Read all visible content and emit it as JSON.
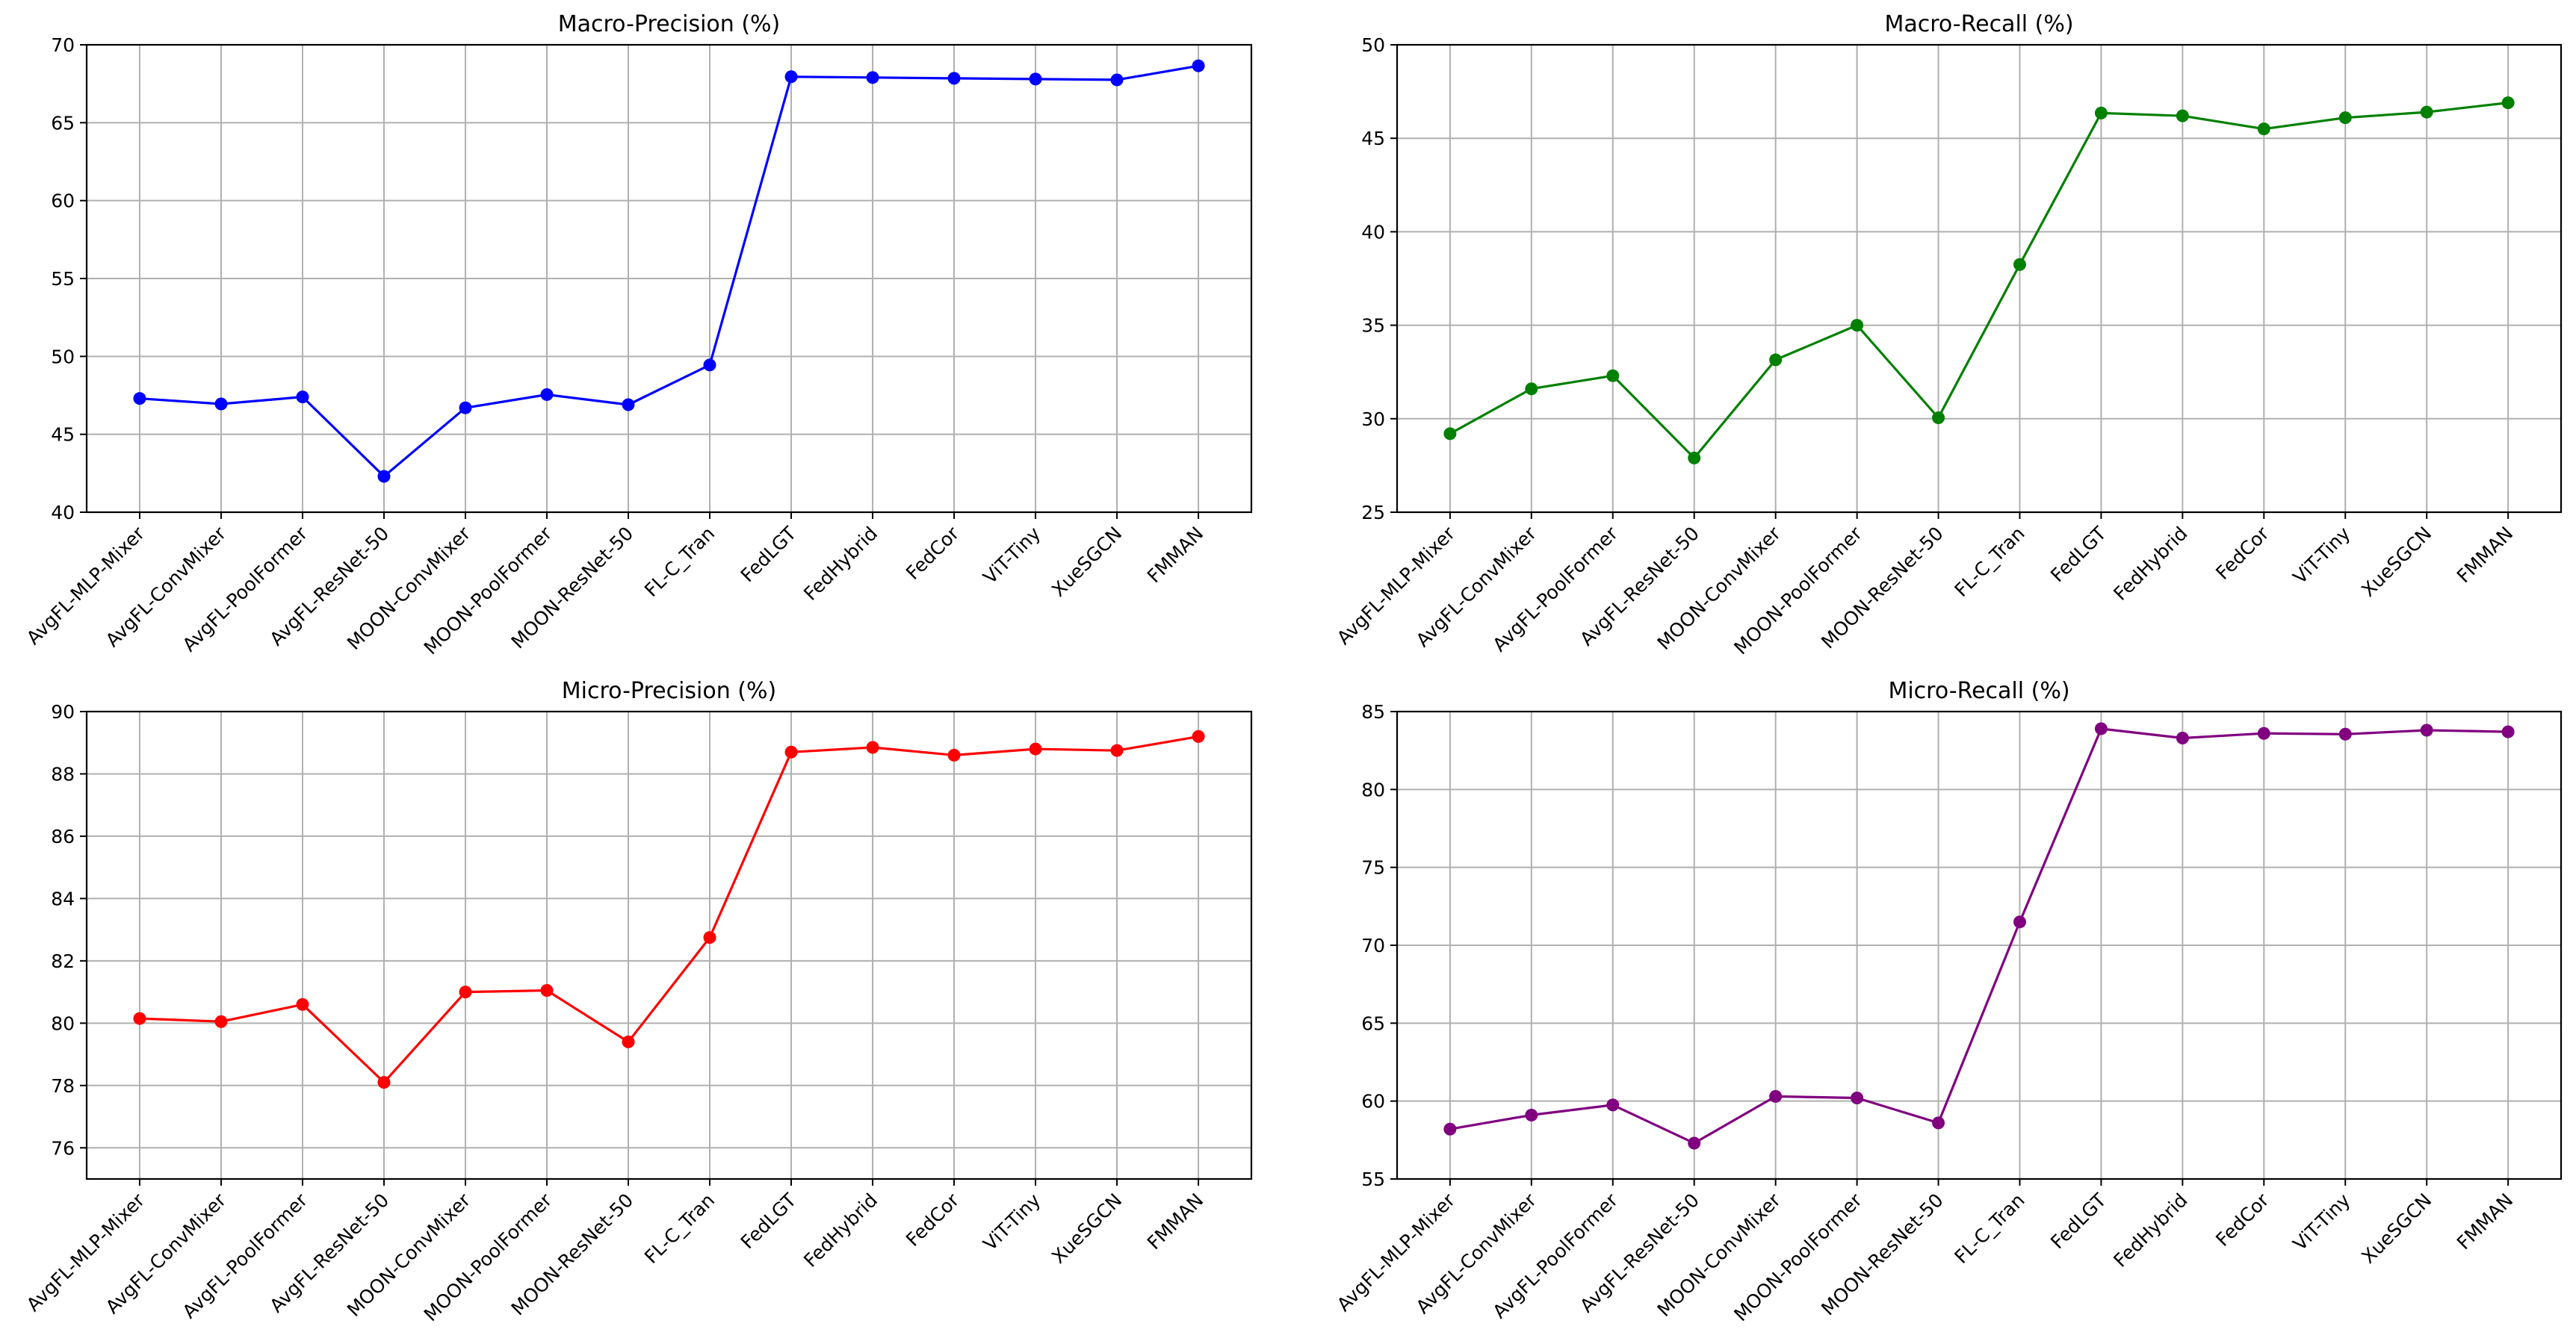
{
  "chart_data": [
    {
      "type": "line",
      "title": "Macro-Precision (%)",
      "xlabel": "",
      "ylabel": "",
      "categories": [
        "AvgFL-MLP-Mixer",
        "AvgFL-ConvMixer",
        "AvgFL-PoolFormer",
        "AvgFL-ResNet-50",
        "MOON-ConvMixer",
        "MOON-PoolFormer",
        "MOON-ResNet-50",
        "FL-C_Tran",
        "FedLGT",
        "FedHybrid",
        "FedCor",
        "ViT-Tiny",
        "XueSGCN",
        "FMMAN"
      ],
      "values": [
        47.3,
        46.95,
        47.4,
        42.3,
        46.7,
        47.55,
        46.9,
        49.45,
        67.95,
        67.9,
        67.85,
        67.8,
        67.75,
        68.65
      ],
      "color": "#0000ff",
      "ylim": [
        40,
        70
      ],
      "yticks": [
        40,
        45,
        50,
        55,
        60,
        65,
        70
      ],
      "grid": true
    },
    {
      "type": "line",
      "title": "Macro-Recall (%)",
      "xlabel": "",
      "ylabel": "",
      "categories": [
        "AvgFL-MLP-Mixer",
        "AvgFL-ConvMixer",
        "AvgFL-PoolFormer",
        "AvgFL-ResNet-50",
        "MOON-ConvMixer",
        "MOON-PoolFormer",
        "MOON-ResNet-50",
        "FL-C_Tran",
        "FedLGT",
        "FedHybrid",
        "FedCor",
        "ViT-Tiny",
        "XueSGCN",
        "FMMAN"
      ],
      "values": [
        29.2,
        31.6,
        32.3,
        27.9,
        33.15,
        35.0,
        30.05,
        38.25,
        46.35,
        46.2,
        45.5,
        46.1,
        46.4,
        46.9
      ],
      "color": "#008000",
      "ylim": [
        25,
        50
      ],
      "yticks": [
        25,
        30,
        35,
        40,
        45,
        50
      ],
      "grid": true
    },
    {
      "type": "line",
      "title": "Micro-Precision (%)",
      "xlabel": "",
      "ylabel": "",
      "categories": [
        "AvgFL-MLP-Mixer",
        "AvgFL-ConvMixer",
        "AvgFL-PoolFormer",
        "AvgFL-ResNet-50",
        "MOON-ConvMixer",
        "MOON-PoolFormer",
        "MOON-ResNet-50",
        "FL-C_Tran",
        "FedLGT",
        "FedHybrid",
        "FedCor",
        "ViT-Tiny",
        "XueSGCN",
        "FMMAN"
      ],
      "values": [
        80.15,
        80.05,
        80.6,
        78.1,
        81.0,
        81.05,
        79.4,
        82.75,
        88.7,
        88.85,
        88.6,
        88.8,
        88.75,
        89.2
      ],
      "color": "#ff0000",
      "ylim": [
        75,
        90
      ],
      "yticks": [
        76,
        78,
        80,
        82,
        84,
        86,
        88,
        90
      ],
      "grid": true
    },
    {
      "type": "line",
      "title": "Micro-Recall (%)",
      "xlabel": "",
      "ylabel": "",
      "categories": [
        "AvgFL-MLP-Mixer",
        "AvgFL-ConvMixer",
        "AvgFL-PoolFormer",
        "AvgFL-ResNet-50",
        "MOON-ConvMixer",
        "MOON-PoolFormer",
        "MOON-ResNet-50",
        "FL-C_Tran",
        "FedLGT",
        "FedHybrid",
        "FedCor",
        "ViT-Tiny",
        "XueSGCN",
        "FMMAN"
      ],
      "values": [
        58.2,
        59.1,
        59.75,
        57.3,
        60.3,
        60.2,
        58.6,
        71.5,
        83.9,
        83.3,
        83.6,
        83.55,
        83.8,
        83.7
      ],
      "color": "#800080",
      "ylim": [
        55,
        85
      ],
      "yticks": [
        55,
        60,
        65,
        70,
        75,
        80,
        85
      ],
      "grid": true
    }
  ]
}
